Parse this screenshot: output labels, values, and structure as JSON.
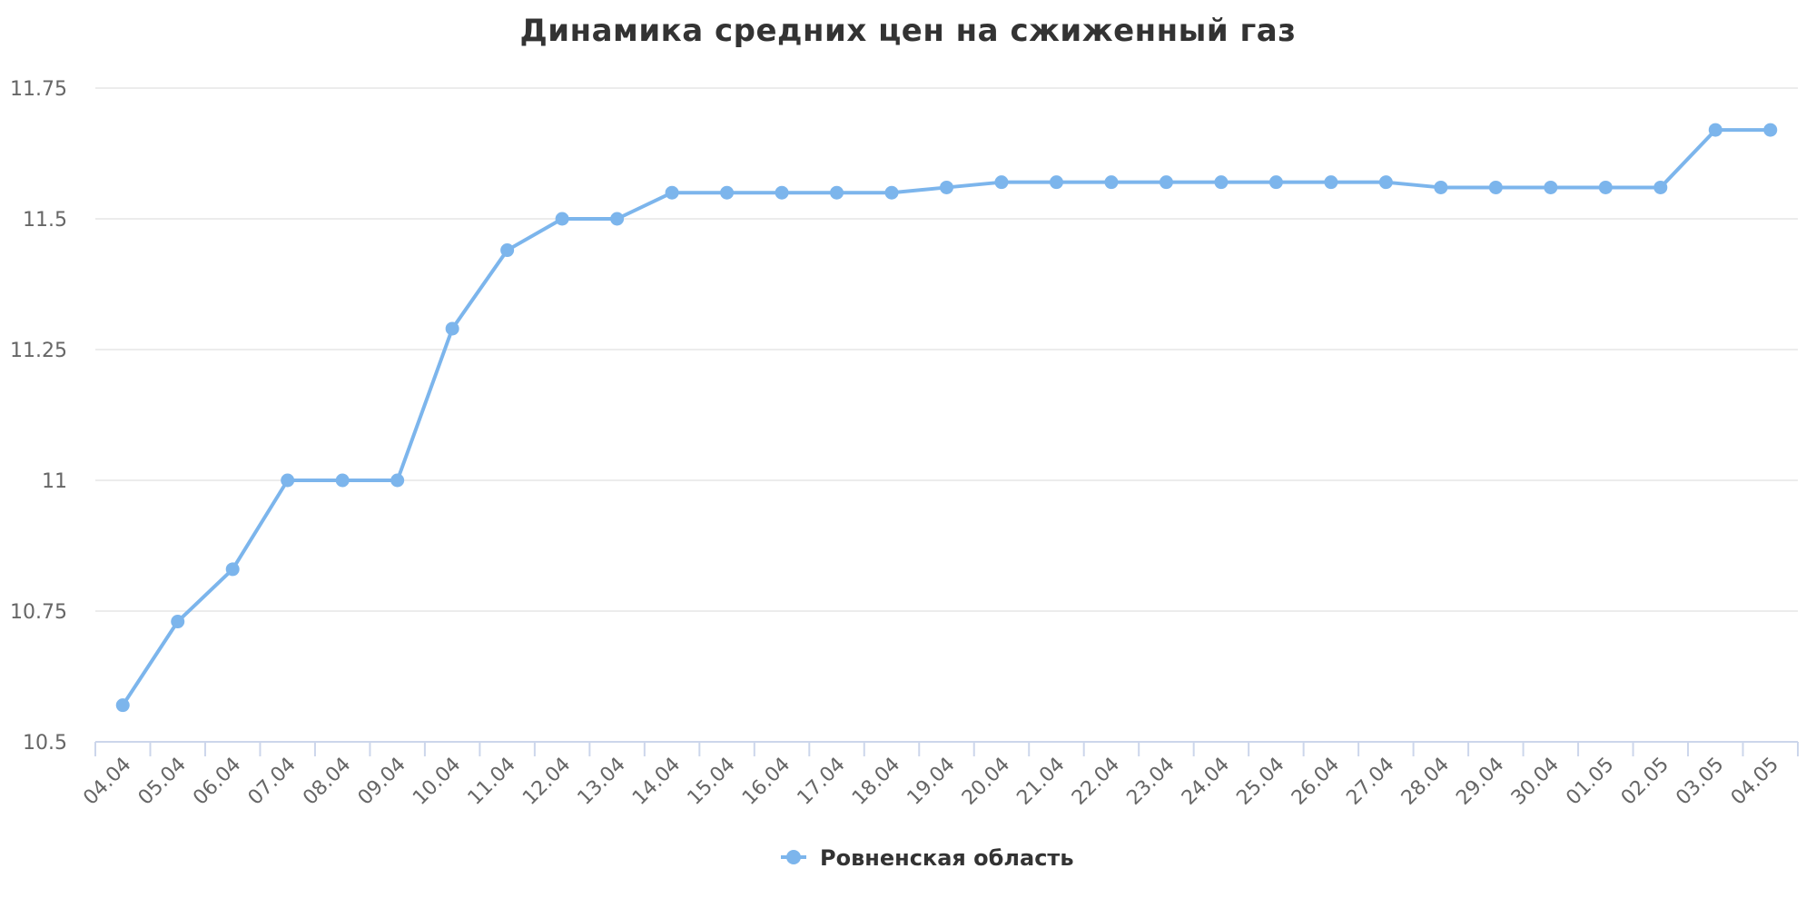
{
  "chart_data": {
    "type": "line",
    "title": "Динамика средних цен на сжиженный газ",
    "xlabel": "",
    "ylabel": "",
    "ylim": [
      10.5,
      11.75
    ],
    "yticks": [
      "10.5",
      "10.75",
      "11",
      "11.25",
      "11.5",
      "11.75"
    ],
    "grid": true,
    "legend_position": "bottom-center",
    "categories": [
      "04.04",
      "05.04",
      "06.04",
      "07.04",
      "08.04",
      "09.04",
      "10.04",
      "11.04",
      "12.04",
      "13.04",
      "14.04",
      "15.04",
      "16.04",
      "17.04",
      "18.04",
      "19.04",
      "20.04",
      "21.04",
      "22.04",
      "23.04",
      "24.04",
      "25.04",
      "26.04",
      "27.04",
      "28.04",
      "29.04",
      "30.04",
      "01.05",
      "02.05",
      "03.05",
      "04.05"
    ],
    "series": [
      {
        "name": "Ровненская область",
        "color": "#7cb5ec",
        "values": [
          10.57,
          10.73,
          10.83,
          11.0,
          11.0,
          11.0,
          11.29,
          11.44,
          11.5,
          11.5,
          11.55,
          11.55,
          11.55,
          11.55,
          11.55,
          11.56,
          11.57,
          11.57,
          11.57,
          11.57,
          11.57,
          11.57,
          11.57,
          11.57,
          11.56,
          11.56,
          11.56,
          11.56,
          11.56,
          11.67,
          11.67
        ]
      }
    ]
  }
}
